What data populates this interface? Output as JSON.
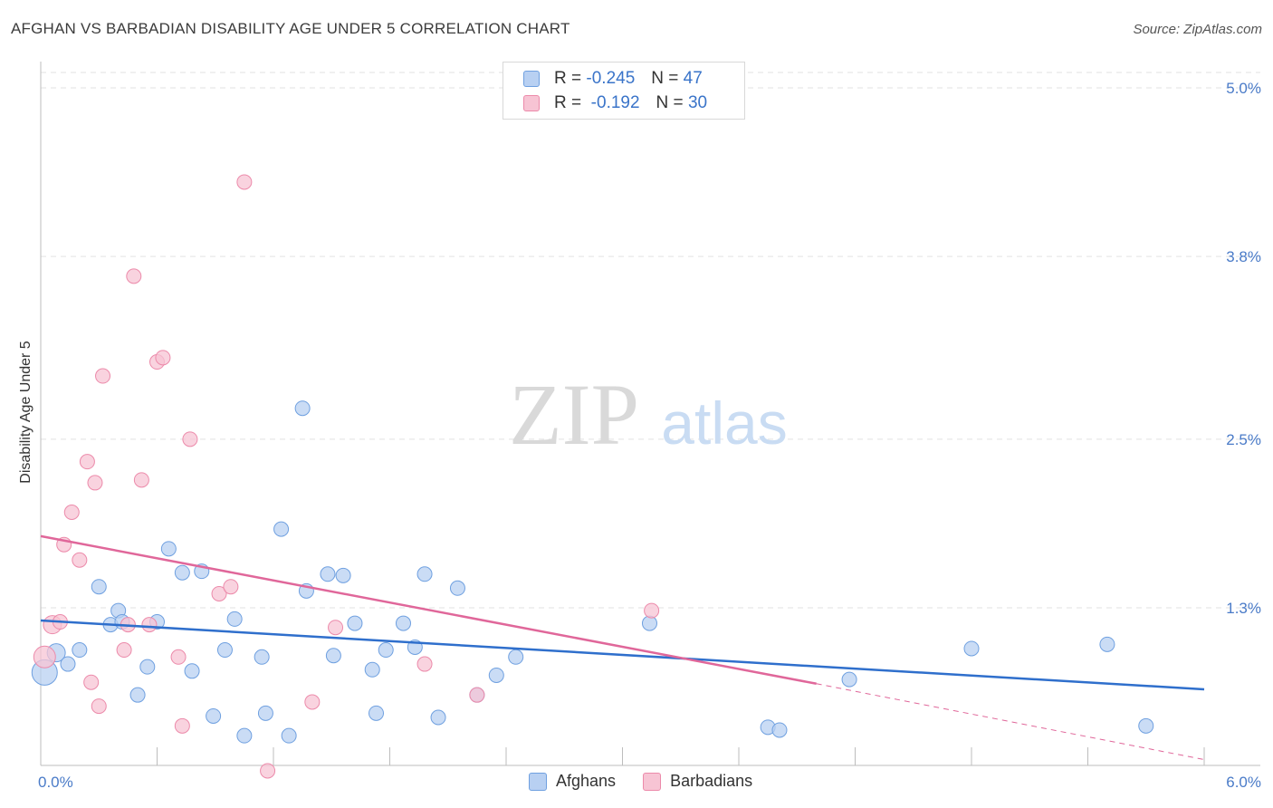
{
  "header": {
    "title": "AFGHAN VS BARBADIAN DISABILITY AGE UNDER 5 CORRELATION CHART",
    "source": "Source: ZipAtlas.com"
  },
  "watermark": {
    "zip": "ZIP",
    "atlas": "atlas"
  },
  "legend": {
    "series": [
      {
        "r_label": "R =",
        "r_value": "-0.245",
        "n_label": "N =",
        "n_value": "47"
      },
      {
        "r_label": "R =",
        "r_value": "-0.192",
        "n_label": "N =",
        "n_value": "30"
      }
    ]
  },
  "chart_data": {
    "type": "scatter",
    "title": "AFGHAN VS BARBADIAN DISABILITY AGE UNDER 5 CORRELATION CHART",
    "ylabel": "Disability Age Under 5",
    "xlabel": "",
    "xlim": [
      0,
      6
    ],
    "ylim": [
      0,
      5.3
    ],
    "x_tick_labels": [
      "0.0%",
      "6.0%"
    ],
    "y_ticks": [
      {
        "value": 5.0,
        "label": "5.0%"
      },
      {
        "value": 3.8,
        "label": "3.8%"
      },
      {
        "value": 2.5,
        "label": "2.5%"
      },
      {
        "value": 1.3,
        "label": "1.3%"
      }
    ],
    "grid": "horizontal dashed",
    "colors": {
      "afghans": "#6fa0e0",
      "afghans_fill": "#b8d0f2",
      "barbadians": "#ec8aaa",
      "barbadians_fill": "#f7c4d4",
      "afghan_line": "#2f6fcc",
      "barbadian_line": "#e0679a"
    },
    "series": [
      {
        "name": "Afghans",
        "points": [
          [
            0.02,
            0.84,
            14
          ],
          [
            0.08,
            0.98,
            10
          ],
          [
            0.14,
            0.9,
            8
          ],
          [
            0.2,
            1.0,
            8
          ],
          [
            0.3,
            1.45,
            8
          ],
          [
            0.36,
            1.18,
            8
          ],
          [
            0.4,
            1.28,
            8
          ],
          [
            0.5,
            0.68,
            8
          ],
          [
            0.55,
            0.88,
            8
          ],
          [
            0.6,
            1.2,
            8
          ],
          [
            0.66,
            1.72,
            8
          ],
          [
            0.73,
            1.55,
            8
          ],
          [
            0.78,
            0.85,
            8
          ],
          [
            0.83,
            1.56,
            8
          ],
          [
            0.89,
            0.53,
            8
          ],
          [
            0.95,
            1.0,
            8
          ],
          [
            1.0,
            1.22,
            8
          ],
          [
            1.05,
            0.39,
            8
          ],
          [
            1.14,
            0.95,
            8
          ],
          [
            1.16,
            0.55,
            8
          ],
          [
            1.24,
            1.86,
            8
          ],
          [
            1.28,
            0.39,
            8
          ],
          [
            1.35,
            2.72,
            8
          ],
          [
            1.37,
            1.42,
            8
          ],
          [
            1.48,
            1.54,
            8
          ],
          [
            1.51,
            0.96,
            8
          ],
          [
            1.56,
            1.53,
            8
          ],
          [
            1.62,
            1.19,
            8
          ],
          [
            1.71,
            0.86,
            8
          ],
          [
            1.73,
            0.55,
            8
          ],
          [
            1.78,
            1.0,
            8
          ],
          [
            1.87,
            1.19,
            8
          ],
          [
            1.93,
            1.02,
            8
          ],
          [
            1.98,
            1.54,
            8
          ],
          [
            2.05,
            0.52,
            8
          ],
          [
            2.15,
            1.44,
            8
          ],
          [
            2.25,
            0.68,
            8
          ],
          [
            2.35,
            0.82,
            8
          ],
          [
            2.45,
            0.95,
            8
          ],
          [
            3.14,
            1.19,
            8
          ],
          [
            3.75,
            0.45,
            8
          ],
          [
            3.81,
            0.43,
            8
          ],
          [
            4.17,
            0.79,
            8
          ],
          [
            4.8,
            1.01,
            8
          ],
          [
            5.5,
            1.04,
            8
          ],
          [
            5.7,
            0.46,
            8
          ],
          [
            0.42,
            1.2,
            8
          ]
        ]
      },
      {
        "name": "Barbadians",
        "points": [
          [
            0.02,
            0.95,
            12
          ],
          [
            0.06,
            1.18,
            10
          ],
          [
            0.1,
            1.2,
            8
          ],
          [
            0.12,
            1.75,
            8
          ],
          [
            0.16,
            1.98,
            8
          ],
          [
            0.2,
            1.64,
            8
          ],
          [
            0.24,
            2.34,
            8
          ],
          [
            0.26,
            0.77,
            8
          ],
          [
            0.28,
            2.19,
            8
          ],
          [
            0.3,
            0.6,
            8
          ],
          [
            0.32,
            2.95,
            8
          ],
          [
            0.43,
            1.0,
            8
          ],
          [
            0.45,
            1.18,
            8
          ],
          [
            0.48,
            3.66,
            8
          ],
          [
            0.52,
            2.21,
            8
          ],
          [
            0.56,
            1.18,
            8
          ],
          [
            0.6,
            3.05,
            8
          ],
          [
            0.63,
            3.08,
            8
          ],
          [
            0.71,
            0.95,
            8
          ],
          [
            0.73,
            0.46,
            8
          ],
          [
            0.77,
            2.5,
            8
          ],
          [
            0.92,
            1.4,
            8
          ],
          [
            0.98,
            1.45,
            8
          ],
          [
            1.05,
            4.33,
            8
          ],
          [
            1.17,
            0.14,
            8
          ],
          [
            1.4,
            0.63,
            8
          ],
          [
            1.52,
            1.16,
            8
          ],
          [
            1.98,
            0.9,
            8
          ],
          [
            2.25,
            0.68,
            8
          ],
          [
            3.15,
            1.28,
            8
          ]
        ]
      }
    ],
    "trend_lines": [
      {
        "name": "Afghans",
        "from": [
          0,
          1.21
        ],
        "to": [
          6,
          0.72
        ]
      },
      {
        "name": "Barbadians",
        "from": [
          0,
          1.81
        ],
        "to": [
          4.0,
          0.76
        ],
        "dashed_to": [
          6,
          0.22
        ]
      }
    ]
  },
  "bottom_legend": {
    "afghans": "Afghans",
    "barbadians": "Barbadians"
  }
}
